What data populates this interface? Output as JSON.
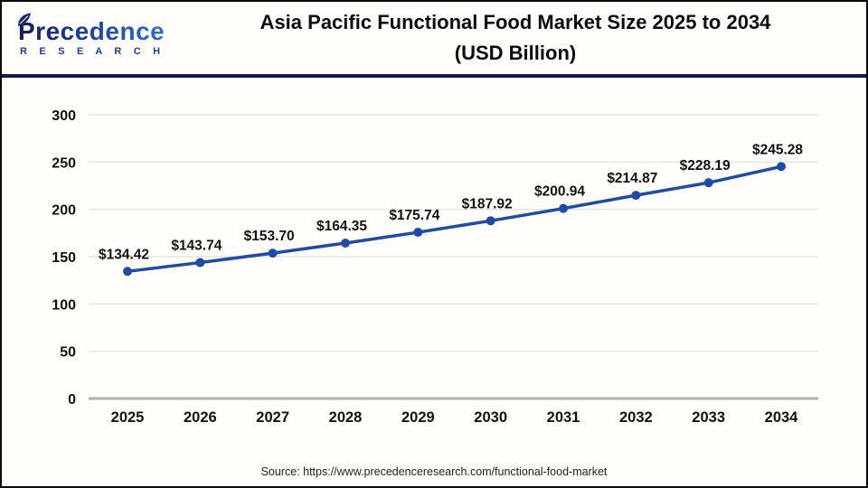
{
  "header": {
    "logo_brand": "Precedence",
    "logo_sub": "R E S E A R C H",
    "title_line1": "Asia Pacific Functional Food Market Size 2025 to 2034",
    "title_line2": "(USD Billion)"
  },
  "chart_data": {
    "type": "line",
    "title": "Asia Pacific Functional Food Market Size 2025 to 2034 (USD Billion)",
    "categories": [
      "2025",
      "2026",
      "2027",
      "2028",
      "2029",
      "2030",
      "2031",
      "2032",
      "2033",
      "2034"
    ],
    "series": [
      {
        "name": "Asia Pacific Functional Food Market Size (USD Billion)",
        "values": [
          134.42,
          143.74,
          153.7,
          164.35,
          175.74,
          187.92,
          200.94,
          214.87,
          228.19,
          245.28
        ]
      }
    ],
    "value_labels": [
      "$134.42",
      "$143.74",
      "$153.70",
      "$164.35",
      "$175.74",
      "$187.92",
      "$200.94",
      "$214.87",
      "$228.19",
      "$245.28"
    ],
    "xlabel": "",
    "ylabel": "",
    "ylim": [
      0,
      300
    ],
    "yticks": [
      0,
      50,
      100,
      150,
      200,
      250,
      300
    ],
    "grid": true,
    "legend": "none",
    "line_color": "#1f4ba8",
    "grid_color": "#e4e4e4",
    "axis_color": "#b0b0b0",
    "text_color": "#111111"
  },
  "footer": {
    "source": "Source: https://www.precedenceresearch.com/functional-food-market"
  }
}
